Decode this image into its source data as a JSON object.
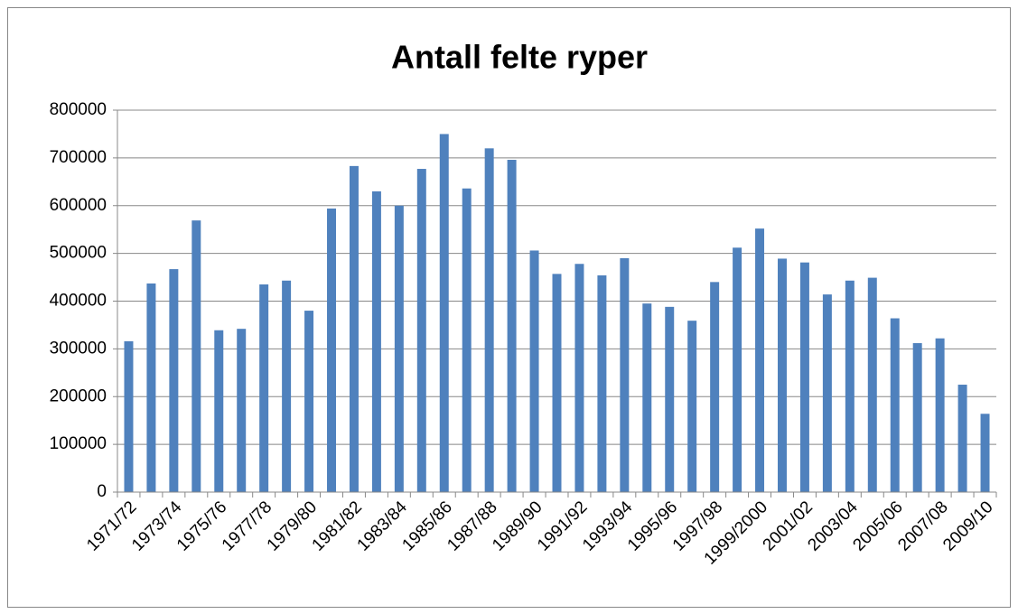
{
  "chart_data": {
    "type": "bar",
    "title": "Antall felte ryper",
    "categories": [
      "1971/72",
      null,
      "1973/74",
      null,
      "1975/76",
      null,
      "1977/78",
      null,
      "1979/80",
      null,
      "1981/82",
      null,
      "1983/84",
      null,
      "1985/86",
      null,
      "1987/88",
      null,
      "1989/90",
      null,
      "1991/92",
      null,
      "1993/94",
      null,
      "1995/96",
      null,
      "1997/98",
      null,
      "1999/2000",
      null,
      "2001/02",
      null,
      "2003/04",
      null,
      "2005/06",
      null,
      "2007/08",
      null,
      "2009/10"
    ],
    "values": [
      316000,
      437000,
      467000,
      569000,
      339000,
      342000,
      435000,
      443000,
      380000,
      594000,
      683000,
      630000,
      600000,
      677000,
      750000,
      636000,
      720000,
      696000,
      506000,
      457000,
      478000,
      454000,
      490000,
      395000,
      388000,
      359000,
      440000,
      512000,
      552000,
      489000,
      481000,
      414000,
      443000,
      449000,
      364000,
      312000,
      322000,
      225000,
      164000
    ],
    "color": "#4f81bd",
    "ylim": [
      0,
      800000
    ],
    "yticks": [
      0,
      100000,
      200000,
      300000,
      400000,
      500000,
      600000,
      700000,
      800000
    ],
    "grid": true
  }
}
